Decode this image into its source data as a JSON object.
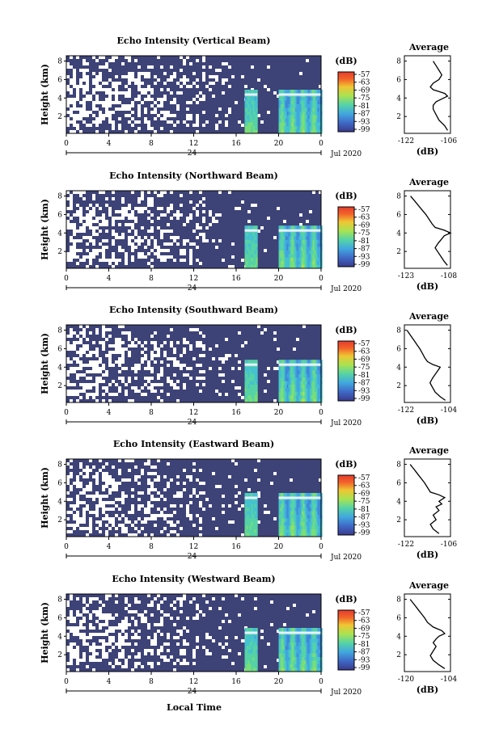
{
  "colors": {
    "background_fill": "#3d4277",
    "gaps": "#ffffff",
    "colormap": [
      "#3a3a8c",
      "#3b4fa8",
      "#3f69c6",
      "#3f88d8",
      "#41a7df",
      "#45c2cf",
      "#55d3a6",
      "#78de79",
      "#a8e352",
      "#d4e03c",
      "#f0c633",
      "#f79a2c",
      "#f3632a",
      "#e43d2f"
    ]
  },
  "shared": {
    "xticks": [
      "0",
      "4",
      "8",
      "12",
      "16",
      "20",
      "0"
    ],
    "date_left": "24",
    "date_right": "Jul 2020",
    "ylabel": "Height (km)",
    "yticks": [
      "2",
      "4",
      "6",
      "8"
    ],
    "colorbar_unit": "(dB)",
    "avg_title": "Average",
    "avg_unit": "(dB)",
    "xlabel_bottom": "Local Time"
  },
  "panels": [
    {
      "title": "Echo Intensity (Vertical Beam)",
      "colorbar_ticks": [
        "-57",
        "-63",
        "-69",
        "-75",
        "-81",
        "-87",
        "-93",
        "-99"
      ],
      "avg_xticks": [
        "-122",
        "-106"
      ]
    },
    {
      "title": "Echo Intensity (Northward Beam)",
      "colorbar_ticks": [
        "-57",
        "-63",
        "-69",
        "-75",
        "-81",
        "-87",
        "-93",
        "-99"
      ],
      "avg_xticks": [
        "-123",
        "-108"
      ]
    },
    {
      "title": "Echo Intensity (Southward Beam)",
      "colorbar_ticks": [
        "-57",
        "-63",
        "-69",
        "-75",
        "-81",
        "-87",
        "-93",
        "-99"
      ],
      "avg_xticks": [
        "-122",
        "-104"
      ]
    },
    {
      "title": "Echo Intensity (Eastward Beam)",
      "colorbar_ticks": [
        "-57",
        "-63",
        "-69",
        "-75",
        "-81",
        "-87",
        "-93",
        "-99"
      ],
      "avg_xticks": [
        "-122",
        "-106"
      ]
    },
    {
      "title": "Echo Intensity (Westward Beam)",
      "colorbar_ticks": [
        "-57",
        "-63",
        "-69",
        "-75",
        "-81",
        "-87",
        "-93",
        "-99"
      ],
      "avg_xticks": [
        "-120",
        "-104"
      ]
    }
  ],
  "chart_data": [
    {
      "type": "heatmap",
      "title": "Echo Intensity (Vertical Beam)",
      "xlabel": "",
      "ylabel": "Height (km)",
      "xlim": [
        0,
        24
      ],
      "ylim": [
        0,
        8
      ],
      "colorbar_label": "(dB)",
      "colorbar_range": [
        -99,
        -57
      ],
      "features": {
        "layer_height_km": 4.0,
        "strong_echo_hours": [
          [
            16.8,
            18.0
          ],
          [
            20.0,
            24.0
          ]
        ]
      }
    },
    {
      "type": "line",
      "title": "Average",
      "xlabel": "(dB)",
      "ylabel": "",
      "xlim": [
        -122,
        -106
      ],
      "ylim": [
        0,
        8
      ],
      "x": [
        -112,
        -111,
        -110,
        -109,
        -110,
        -112,
        -113,
        -112,
        -110,
        -108,
        -107,
        -109,
        -111,
        -112,
        -112,
        -111,
        -110,
        -108,
        -107
      ],
      "y": [
        8,
        7.5,
        7,
        6.5,
        6,
        5.6,
        5.2,
        4.9,
        4.7,
        4.5,
        4.2,
        3.9,
        3.6,
        3.2,
        2.8,
        2.2,
        1.6,
        1.0,
        0.5
      ]
    },
    {
      "type": "heatmap",
      "title": "Echo Intensity (Northward Beam)",
      "xlabel": "",
      "ylabel": "Height (km)",
      "xlim": [
        0,
        24
      ],
      "ylim": [
        0,
        8
      ],
      "colorbar_label": "(dB)",
      "colorbar_range": [
        -99,
        -57
      ],
      "features": {
        "layer_height_km": 3.9,
        "strong_echo_hours": [
          [
            16.8,
            18.0
          ],
          [
            20.0,
            24.0
          ]
        ]
      }
    },
    {
      "type": "line",
      "title": "Average",
      "xlabel": "(dB)",
      "ylabel": "",
      "xlim": [
        -123,
        -108
      ],
      "ylim": [
        0,
        8
      ],
      "x": [
        -121,
        -120,
        -119,
        -118,
        -117,
        -116,
        -115,
        -114,
        -113,
        -110,
        -108,
        -110,
        -111,
        -112,
        -113,
        -112,
        -111,
        -110,
        -109
      ],
      "y": [
        8,
        7.6,
        7.2,
        6.8,
        6.4,
        6.0,
        5.5,
        5.0,
        4.6,
        4.3,
        4.0,
        3.7,
        3.3,
        2.9,
        2.4,
        1.9,
        1.4,
        0.9,
        0.5
      ]
    },
    {
      "type": "heatmap",
      "title": "Echo Intensity (Southward Beam)",
      "xlabel": "",
      "ylabel": "Height (km)",
      "xlim": [
        0,
        24
      ],
      "ylim": [
        0,
        8
      ],
      "colorbar_label": "(dB)",
      "colorbar_range": [
        -99,
        -57
      ],
      "features": {
        "layer_height_km": 3.9,
        "strong_echo_hours": [
          [
            16.8,
            18.0
          ],
          [
            20.0,
            24.0
          ]
        ]
      }
    },
    {
      "type": "line",
      "title": "Average",
      "xlabel": "(dB)",
      "ylabel": "",
      "xlim": [
        -122,
        -104
      ],
      "ylim": [
        0,
        8
      ],
      "x": [
        -121,
        -120,
        -119,
        -118,
        -117,
        -116,
        -115,
        -114,
        -113,
        -111,
        -108,
        -109,
        -110,
        -111,
        -112,
        -111,
        -110,
        -108,
        -106
      ],
      "y": [
        8,
        7.6,
        7.2,
        6.8,
        6.4,
        6.0,
        5.5,
        5.0,
        4.6,
        4.3,
        4.0,
        3.6,
        3.2,
        2.8,
        2.3,
        1.8,
        1.3,
        0.8,
        0.4
      ]
    },
    {
      "type": "heatmap",
      "title": "Echo Intensity (Eastward Beam)",
      "xlabel": "",
      "ylabel": "Height (km)",
      "xlim": [
        0,
        24
      ],
      "ylim": [
        0,
        8
      ],
      "colorbar_label": "(dB)",
      "colorbar_range": [
        -99,
        -57
      ],
      "features": {
        "layer_height_km": 4.0,
        "strong_echo_hours": [
          [
            16.8,
            18.0
          ],
          [
            20.0,
            24.0
          ]
        ]
      }
    },
    {
      "type": "line",
      "title": "Average",
      "xlabel": "(dB)",
      "ylabel": "",
      "xlim": [
        -122,
        -106
      ],
      "ylim": [
        0,
        8
      ],
      "x": [
        -120,
        -119,
        -118,
        -117,
        -116,
        -115,
        -114,
        -113,
        -110,
        -108,
        -110,
        -109,
        -111,
        -110,
        -112,
        -111,
        -113,
        -112,
        -110
      ],
      "y": [
        8,
        7.6,
        7.2,
        6.8,
        6.4,
        6.0,
        5.5,
        5.0,
        4.7,
        4.4,
        4.0,
        3.7,
        3.4,
        3.0,
        2.5,
        2.0,
        1.5,
        1.0,
        0.5
      ]
    },
    {
      "type": "heatmap",
      "title": "Echo Intensity (Westward Beam)",
      "xlabel": "Local Time",
      "ylabel": "Height (km)",
      "xlim": [
        0,
        24
      ],
      "ylim": [
        0,
        8
      ],
      "colorbar_label": "(dB)",
      "colorbar_range": [
        -99,
        -57
      ],
      "features": {
        "layer_height_km": 4.0,
        "strong_echo_hours": [
          [
            16.8,
            18.0
          ],
          [
            20.0,
            24.0
          ]
        ]
      }
    },
    {
      "type": "line",
      "title": "Average",
      "xlabel": "(dB)",
      "ylabel": "",
      "xlim": [
        -120,
        -104
      ],
      "ylim": [
        0,
        8
      ],
      "x": [
        -118,
        -117,
        -116,
        -115,
        -114,
        -113,
        -112,
        -110,
        -107,
        -106,
        -108,
        -109,
        -110,
        -109,
        -110,
        -111,
        -110,
        -108,
        -106
      ],
      "y": [
        8,
        7.6,
        7.2,
        6.8,
        6.4,
        6.0,
        5.5,
        5.0,
        4.6,
        4.3,
        4.0,
        3.7,
        3.3,
        2.9,
        2.4,
        1.9,
        1.4,
        0.9,
        0.5
      ]
    }
  ]
}
